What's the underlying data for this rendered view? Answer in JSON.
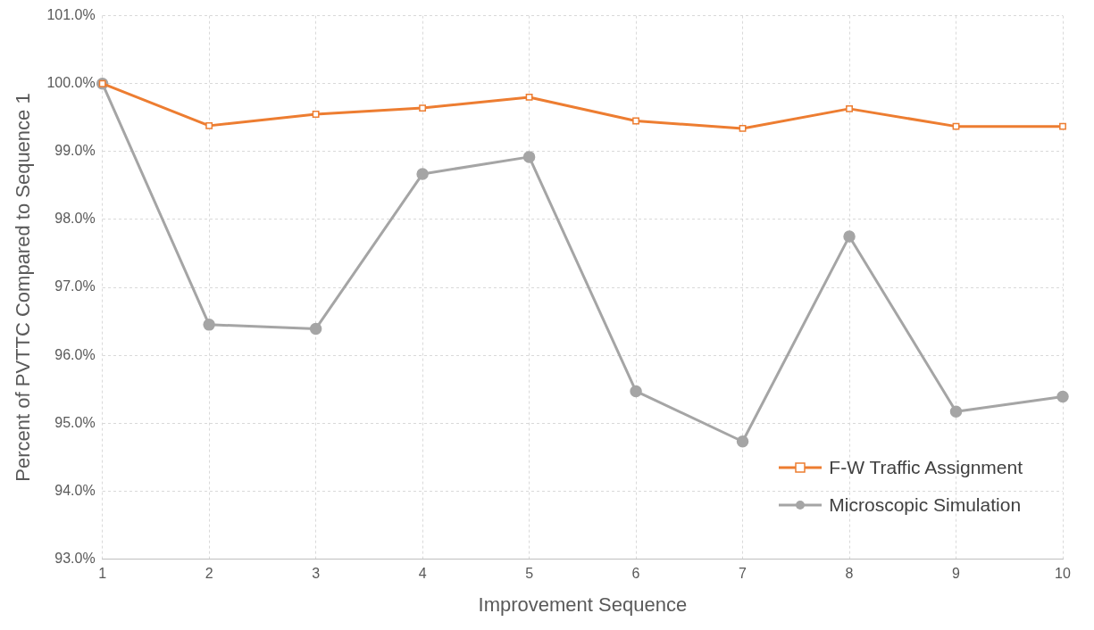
{
  "chart_data": {
    "type": "line",
    "xlabel": "Improvement Sequence",
    "ylabel": "Percent of PVTTC Compared to Sequence 1",
    "categories": [
      "1",
      "2",
      "3",
      "4",
      "5",
      "6",
      "7",
      "8",
      "9",
      "10"
    ],
    "series": [
      {
        "name": "F-W Traffic Assignment",
        "color": "#ed7d31",
        "marker": "square",
        "values": [
          100.0,
          99.38,
          99.55,
          99.64,
          99.8,
          99.45,
          99.34,
          99.63,
          99.37,
          99.37
        ]
      },
      {
        "name": "Microscopic Simulation",
        "color": "#a5a5a5",
        "marker": "circle",
        "values": [
          100.0,
          96.45,
          96.39,
          98.67,
          98.92,
          95.47,
          94.73,
          97.75,
          95.17,
          95.39
        ]
      }
    ],
    "ylim": [
      93,
      101
    ],
    "yticks": [
      {
        "value": 93,
        "label": "93.0%"
      },
      {
        "value": 94,
        "label": "94.0%"
      },
      {
        "value": 95,
        "label": "95.0%"
      },
      {
        "value": 96,
        "label": "96.0%"
      },
      {
        "value": 97,
        "label": "97.0%"
      },
      {
        "value": 98,
        "label": "98.0%"
      },
      {
        "value": 99,
        "label": "99.0%"
      },
      {
        "value": 100,
        "label": "100.0%"
      },
      {
        "value": 101,
        "label": "101.0%"
      }
    ],
    "grid": true,
    "legend": "bottom right",
    "line_style": "solid"
  }
}
